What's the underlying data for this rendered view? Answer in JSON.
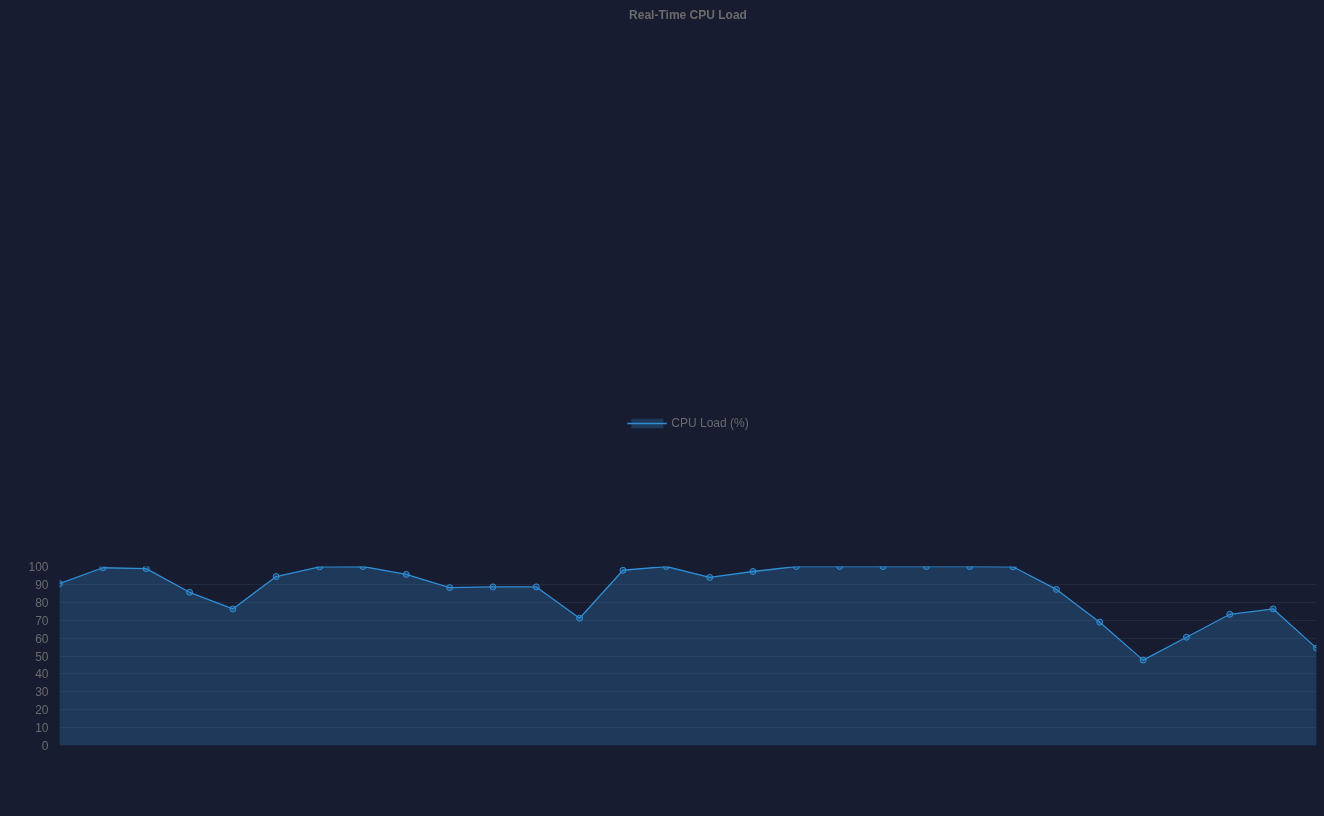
{
  "chart_data": {
    "type": "area",
    "title": "Real-Time CPU Load",
    "categories": [
      null,
      null,
      null,
      null,
      null,
      null,
      null,
      null,
      null,
      null,
      null,
      null,
      null,
      null,
      null,
      null,
      null,
      null,
      null,
      null,
      null,
      null,
      null,
      null,
      null,
      null,
      null,
      null,
      null,
      null
    ],
    "series": [
      {
        "name": "CPU Load (%)",
        "color": "#2f8fd6",
        "values": [
          90.4,
          99.3,
          98.8,
          85.6,
          76.3,
          94.4,
          99.8,
          100,
          95.6,
          88.2,
          88.6,
          88.6,
          71.1,
          97.9,
          100,
          93.9,
          97.2,
          100,
          100,
          100,
          100,
          100,
          99.8,
          87.2,
          68.9,
          47.7,
          60.5,
          73.3,
          76.3,
          54.4
        ]
      }
    ],
    "ylim": [
      0,
      100
    ],
    "yticks": [
      0,
      10,
      20,
      30,
      40,
      50,
      60,
      70,
      80,
      90,
      100
    ],
    "grid": "y",
    "legend": "top",
    "marker": "circle",
    "tick_labels": "y"
  }
}
